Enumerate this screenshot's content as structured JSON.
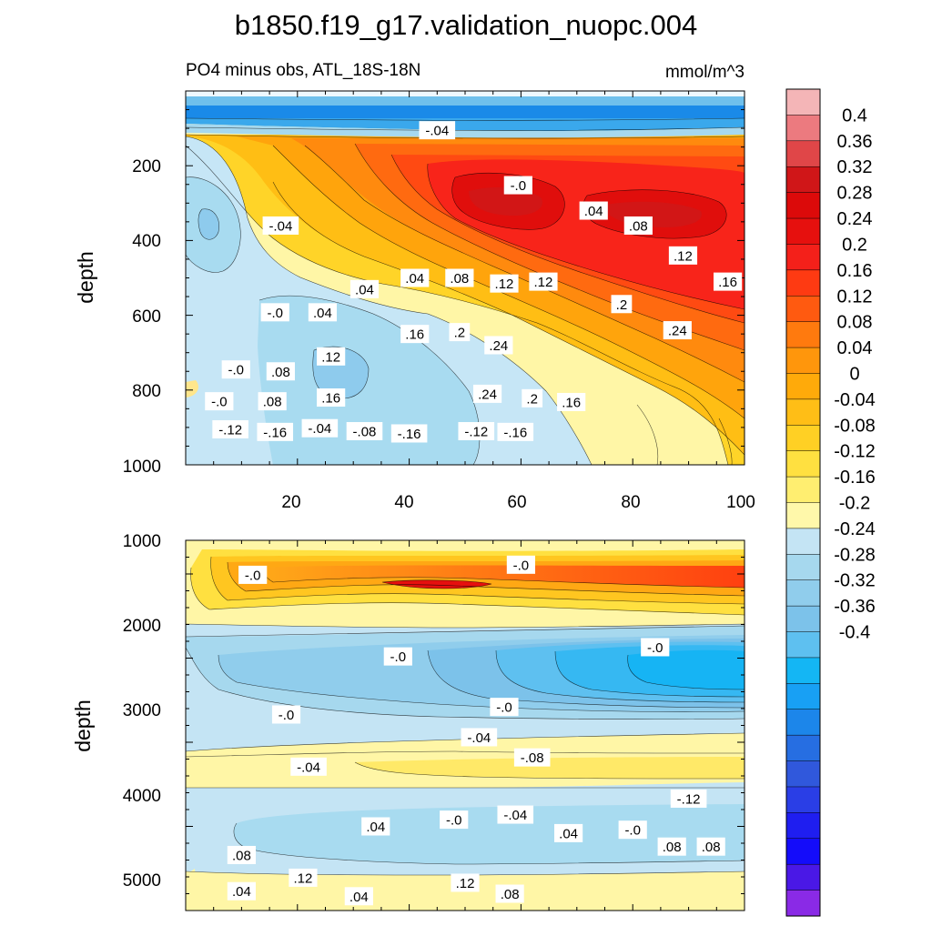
{
  "chart_data": {
    "type": "contour",
    "title": "b1850.f19_g17.validation_nuopc.004",
    "subtitle_left": "PO4 minus obs, ATL_18S-18N",
    "units": "mmol/m^3",
    "colorbar": {
      "levels": [
        "0.4",
        "0.36",
        "0.32",
        "0.28",
        "0.24",
        "0.2",
        "0.16",
        "0.12",
        "0.08",
        "0.04",
        "0",
        "-0.04",
        "-0.08",
        "-0.12",
        "-0.16",
        "-0.2",
        "-0.24",
        "-0.28",
        "-0.32",
        "-0.36",
        "-0.4"
      ],
      "colors": [
        "#f4b5b7",
        "#ec7a7f",
        "#e04648",
        "#d01618",
        "#dc0a0a",
        "#e6100e",
        "#f4201a",
        "#fe3a12",
        "#ff5a10",
        "#ff7a0e",
        "#ff960c",
        "#ffaa0a",
        "#ffbe16",
        "#ffd024",
        "#ffe040",
        "#ffee70",
        "#fff8aa",
        "#c4e4f4",
        "#a6d8ee",
        "#90cdec",
        "#7cc2ea",
        "#5ec0f0",
        "#14b6f4",
        "#18a0f4",
        "#1c86ea",
        "#266ee2",
        "#3058dc",
        "#2a3ee6",
        "#1f1ef0",
        "#140cfa",
        "#4a18e6",
        "#8a2ae6"
      ]
    },
    "panels": [
      {
        "name": "upper",
        "xlim": [
          0,
          100
        ],
        "ylim": [
          1000,
          0
        ],
        "xticks": [
          "20",
          "40",
          "60",
          "80",
          "100"
        ],
        "yticks": [
          "200",
          "400",
          "600",
          "800",
          "1000"
        ],
        "ylabel": "depth",
        "contour_labels": [
          {
            "text": "-.12",
            "x": 8,
            "y": 95
          },
          {
            "text": "-.16",
            "x": 16,
            "y": 88
          },
          {
            "text": "-.04",
            "x": 24,
            "y": 98
          },
          {
            "text": "-.08",
            "x": 32,
            "y": 90
          },
          {
            "text": "-.16",
            "x": 40,
            "y": 84
          },
          {
            "text": "-.12",
            "x": 52,
            "y": 90
          },
          {
            "text": "-.16",
            "x": 59,
            "y": 88
          },
          {
            "text": "-.0",
            "x": 6,
            "y": 170
          },
          {
            "text": ".08",
            "x": 15.5,
            "y": 170
          },
          {
            "text": ".16",
            "x": 26,
            "y": 180
          },
          {
            "text": ".24",
            "x": 54,
            "y": 190
          },
          {
            "text": ".2",
            "x": 62,
            "y": 178
          },
          {
            "text": ".16",
            "x": 69,
            "y": 168
          },
          {
            "text": "-.0",
            "x": 9,
            "y": 255
          },
          {
            "text": ".08",
            "x": 17,
            "y": 250
          },
          {
            "text": ".12",
            "x": 26,
            "y": 290
          },
          {
            "text": ".24",
            "x": 56,
            "y": 320
          },
          {
            "text": ".16",
            "x": 41,
            "y": 350
          },
          {
            "text": ".2",
            "x": 49,
            "y": 355
          },
          {
            "text": ".24",
            "x": 88,
            "y": 360
          },
          {
            "text": "-.0",
            "x": 16,
            "y": 408
          },
          {
            "text": ".04",
            "x": 24.5,
            "y": 408
          },
          {
            "text": ".2",
            "x": 78,
            "y": 430
          },
          {
            "text": ".04",
            "x": 32,
            "y": 470
          },
          {
            "text": ".04",
            "x": 41,
            "y": 500
          },
          {
            "text": ".08",
            "x": 49,
            "y": 500
          },
          {
            "text": ".12",
            "x": 57,
            "y": 485
          },
          {
            "text": ".12",
            "x": 64,
            "y": 490
          },
          {
            "text": ".16",
            "x": 97,
            "y": 490
          },
          {
            "text": ".12",
            "x": 89,
            "y": 560
          },
          {
            "text": ".08",
            "x": 81,
            "y": 640
          },
          {
            "text": "-.04",
            "x": 17,
            "y": 640
          },
          {
            "text": ".04",
            "x": 73,
            "y": 680
          },
          {
            "text": "-.0",
            "x": 59.5,
            "y": 748
          },
          {
            "text": "-.04",
            "x": 45,
            "y": 895
          }
        ]
      },
      {
        "name": "lower",
        "xlim": [
          0,
          100
        ],
        "ylim": [
          5400,
          1000
        ],
        "yticks": [
          "1000",
          "2000",
          "3000",
          "4000",
          "5000"
        ],
        "ylabel": "depth",
        "contour_labels": [
          {
            "text": ".04",
            "x": 10,
            "y": 1230
          },
          {
            "text": ".04",
            "x": 31,
            "y": 1170
          },
          {
            "text": ".08",
            "x": 58,
            "y": 1200
          },
          {
            "text": ".12",
            "x": 21,
            "y": 1390
          },
          {
            "text": ".12",
            "x": 50,
            "y": 1330
          },
          {
            "text": ".08",
            "x": 10,
            "y": 1660
          },
          {
            "text": ".08",
            "x": 87,
            "y": 1760
          },
          {
            "text": ".08",
            "x": 94,
            "y": 1760
          },
          {
            "text": ".04",
            "x": 68.5,
            "y": 1920
          },
          {
            "text": "-.0",
            "x": 80,
            "y": 1960
          },
          {
            "text": ".04",
            "x": 34,
            "y": 2000
          },
          {
            "text": "-.0",
            "x": 48,
            "y": 2080
          },
          {
            "text": "-.04",
            "x": 59,
            "y": 2140
          },
          {
            "text": "-.12",
            "x": 90,
            "y": 2330
          },
          {
            "text": "-.04",
            "x": 22,
            "y": 2710
          },
          {
            "text": "-.08",
            "x": 62,
            "y": 2820
          },
          {
            "text": "-.04",
            "x": 52.5,
            "y": 3060
          },
          {
            "text": "-.0",
            "x": 18,
            "y": 3330
          },
          {
            "text": "-.0",
            "x": 57,
            "y": 3420
          },
          {
            "text": "-.0",
            "x": 38,
            "y": 4020
          },
          {
            "text": "-.0",
            "x": 84,
            "y": 4130
          },
          {
            "text": "-.0",
            "x": 12,
            "y": 4990
          },
          {
            "text": "-.0",
            "x": 60,
            "y": 5110
          }
        ]
      }
    ]
  }
}
